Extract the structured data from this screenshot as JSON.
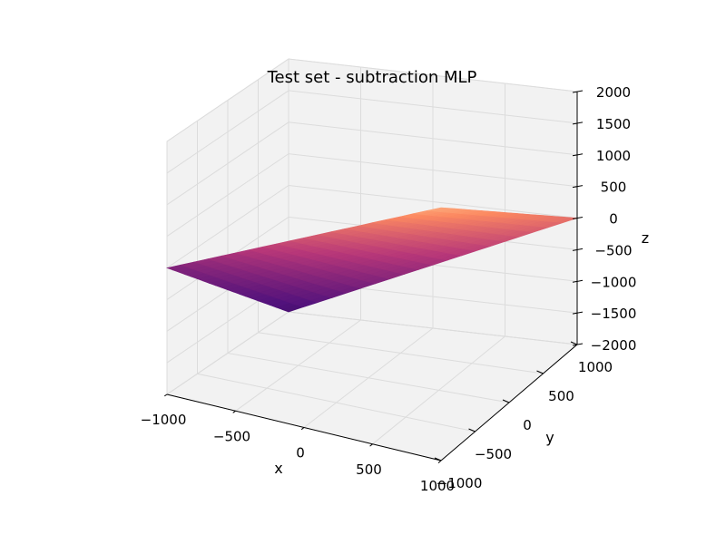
{
  "chart_data": {
    "type": "surface3d",
    "title": "Test set - subtraction MLP",
    "xlabel": "x",
    "ylabel": "y",
    "zlabel": "z",
    "xlim": [
      -1000,
      1000
    ],
    "ylim": [
      -1000,
      1000
    ],
    "zlim": [
      -2000,
      2000
    ],
    "x_ticks": [
      -1000,
      -500,
      0,
      500,
      1000
    ],
    "y_ticks": [
      -1000,
      -500,
      0,
      500,
      1000
    ],
    "z_ticks": [
      -2000,
      -1500,
      -1000,
      -500,
      0,
      500,
      1000,
      1500,
      2000
    ],
    "x_tick_labels": [
      "−1000",
      "−500",
      "0",
      "500",
      "1000"
    ],
    "y_tick_labels": [
      "−1000",
      "−500",
      "0",
      "500",
      "1000"
    ],
    "z_tick_labels": [
      "−2000",
      "−1500",
      "−1000",
      "−500",
      "0",
      "500",
      "1000",
      "1500",
      "2000"
    ],
    "surface": "z = x - y",
    "surface_corners": [
      {
        "x": -1000,
        "y": -1000,
        "z": 0
      },
      {
        "x": 1000,
        "y": -1000,
        "z": 2000
      },
      {
        "x": 1000,
        "y": 1000,
        "z": 0
      },
      {
        "x": -1000,
        "y": 1000,
        "z": -2000
      }
    ],
    "colormap": "magma",
    "grid": true,
    "pane_color": "#f2f2f2"
  }
}
